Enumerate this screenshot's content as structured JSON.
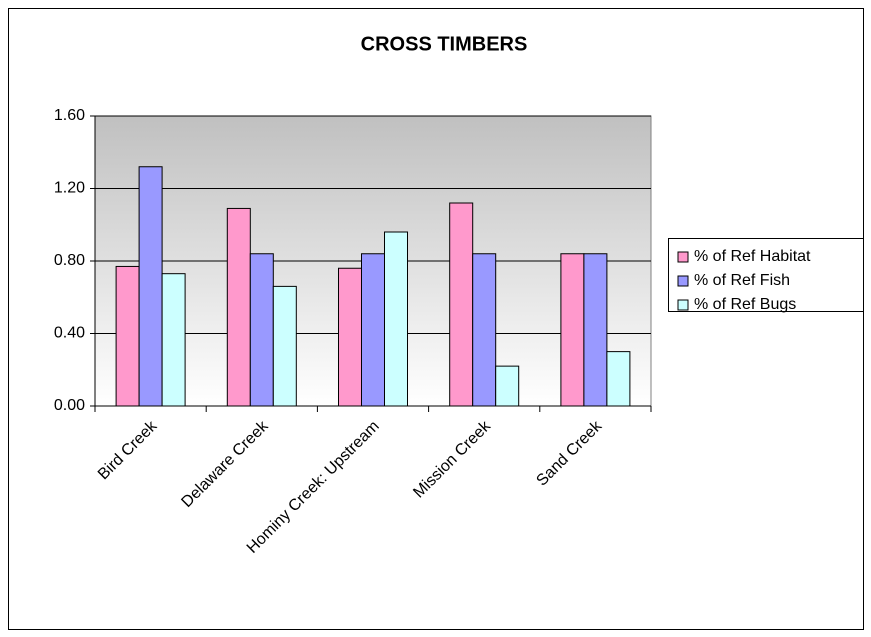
{
  "chart_data": {
    "type": "bar",
    "title": "CROSS TIMBERS",
    "categories": [
      "Bird Creek",
      "Delaware Creek",
      "Hominy Creek: Upstream",
      "Mission Creek",
      "Sand Creek"
    ],
    "series": [
      {
        "name": "% of Ref Habitat",
        "color": "#ff99cc",
        "values": [
          0.77,
          1.09,
          0.76,
          1.12,
          0.84
        ]
      },
      {
        "name": "% of Ref Fish",
        "color": "#9999ff",
        "values": [
          1.32,
          0.84,
          0.84,
          0.84,
          0.84
        ]
      },
      {
        "name": "% of Ref Bugs",
        "color": "#ccffff",
        "values": [
          0.73,
          0.66,
          0.96,
          0.22,
          0.3
        ]
      }
    ],
    "ylim": [
      0,
      1.6
    ],
    "yticks": [
      {
        "value": 0,
        "label": "0.00"
      },
      {
        "value": 0.4,
        "label": "0.40"
      },
      {
        "value": 0.8,
        "label": "0.80"
      },
      {
        "value": 1.2,
        "label": "1.20"
      },
      {
        "value": 1.6,
        "label": "1.60"
      }
    ],
    "grid": true,
    "legend": "right"
  }
}
